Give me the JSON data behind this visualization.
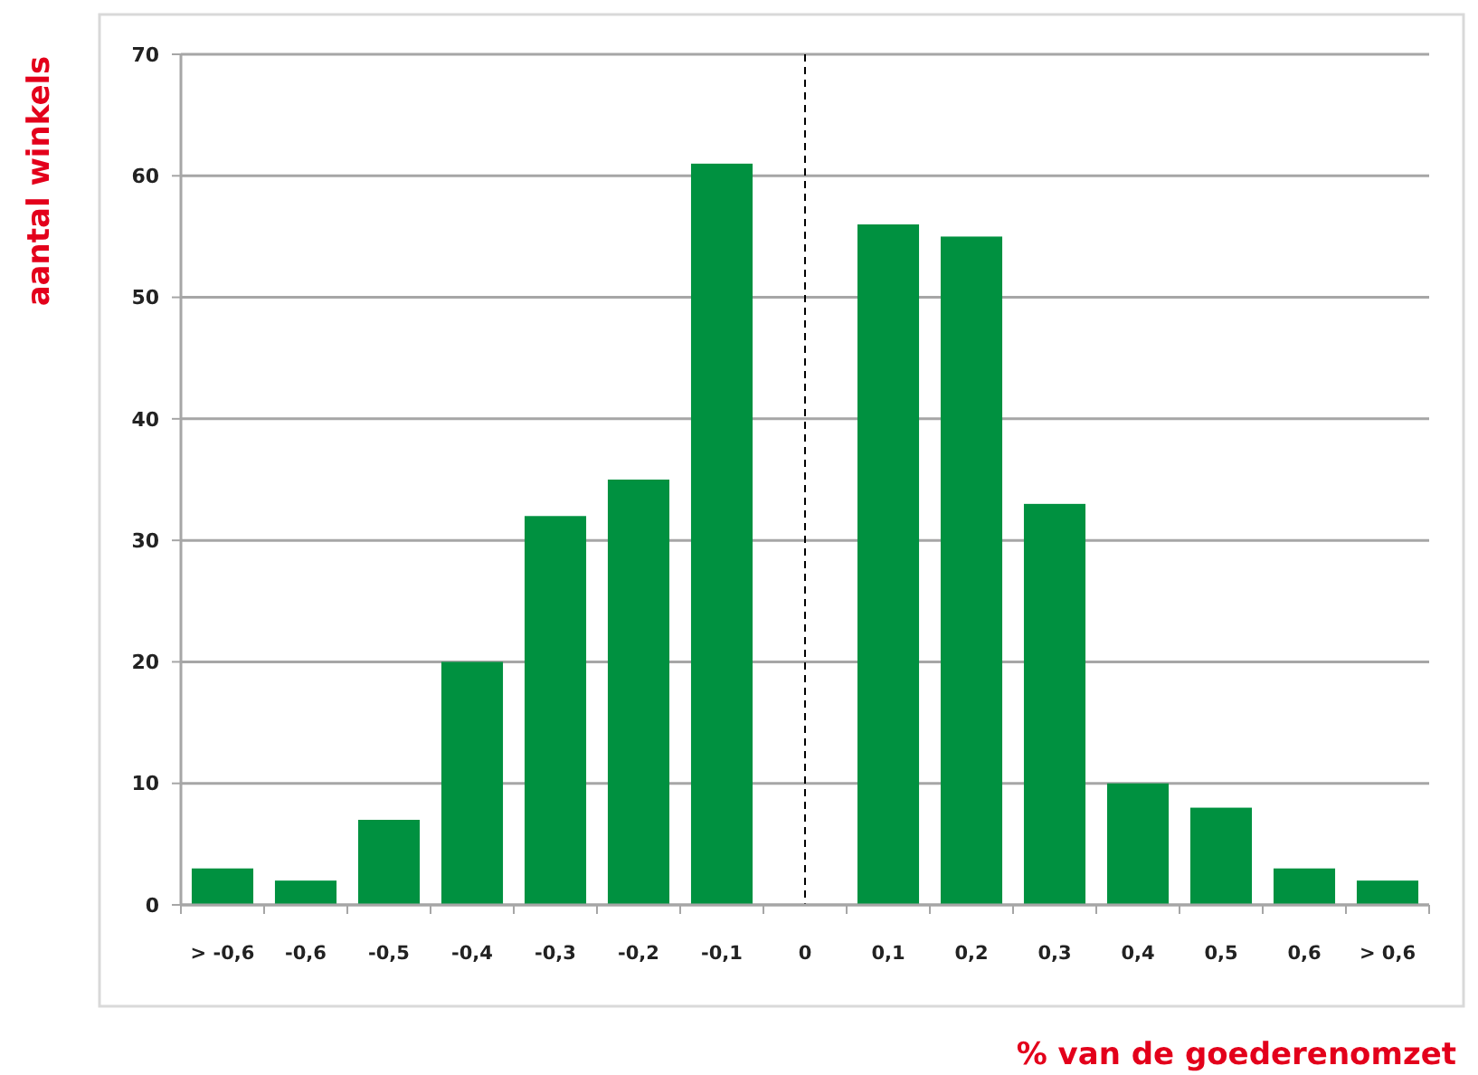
{
  "chart_data": {
    "type": "bar",
    "xlabel": "% van de goederenomzet",
    "ylabel": "aantal winkels",
    "categories": [
      "> -0,6",
      "-0,6",
      "-0,5",
      "-0,4",
      "-0,3",
      "-0,2",
      "-0,1",
      "0",
      "0,1",
      "0,2",
      "0,3",
      "0,4",
      "0,5",
      "0,6",
      "> 0,6"
    ],
    "values": [
      3,
      2,
      7,
      20,
      32,
      35,
      61,
      null,
      56,
      55,
      33,
      10,
      8,
      3,
      2
    ],
    "color": "#009140",
    "ylim": [
      0,
      70
    ],
    "yticks": [
      0,
      10,
      20,
      30,
      40,
      50,
      60,
      70
    ],
    "grid": "y",
    "ref_lines": [
      {
        "axis": "x",
        "value": "0",
        "color": "#000000",
        "line_style": "dashed"
      }
    ]
  }
}
